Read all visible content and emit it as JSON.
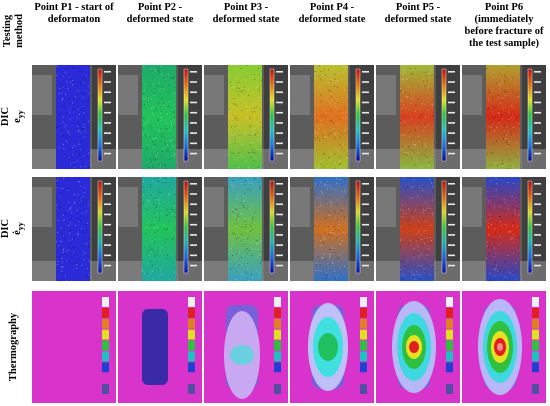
{
  "header": {
    "testing_method": "Testing method"
  },
  "columns": [
    {
      "label": "Point P1 - start of deformaton"
    },
    {
      "label": "Point P2 - deformed state"
    },
    {
      "label": "Point P3 - deformed state"
    },
    {
      "label": "Point P4 - deformed state"
    },
    {
      "label": "Point P5 - deformed state"
    },
    {
      "label": "Point P6 (immediately before fracture of the test sample)"
    }
  ],
  "rows": [
    {
      "label": "DIC",
      "symbol": "e",
      "subscript": "yy"
    },
    {
      "label": "DIC",
      "symbol": "ė",
      "subscript": "yy"
    },
    {
      "label": "Thermography"
    }
  ],
  "colors": {
    "dic_low": "#2a2ad8",
    "dic_mid": "#22c35a",
    "dic_high": "#d62a18",
    "thermo_bg": "#d834cc",
    "thermo_cold": "#3a2aa8",
    "thermo_hot": "#e01818"
  }
}
